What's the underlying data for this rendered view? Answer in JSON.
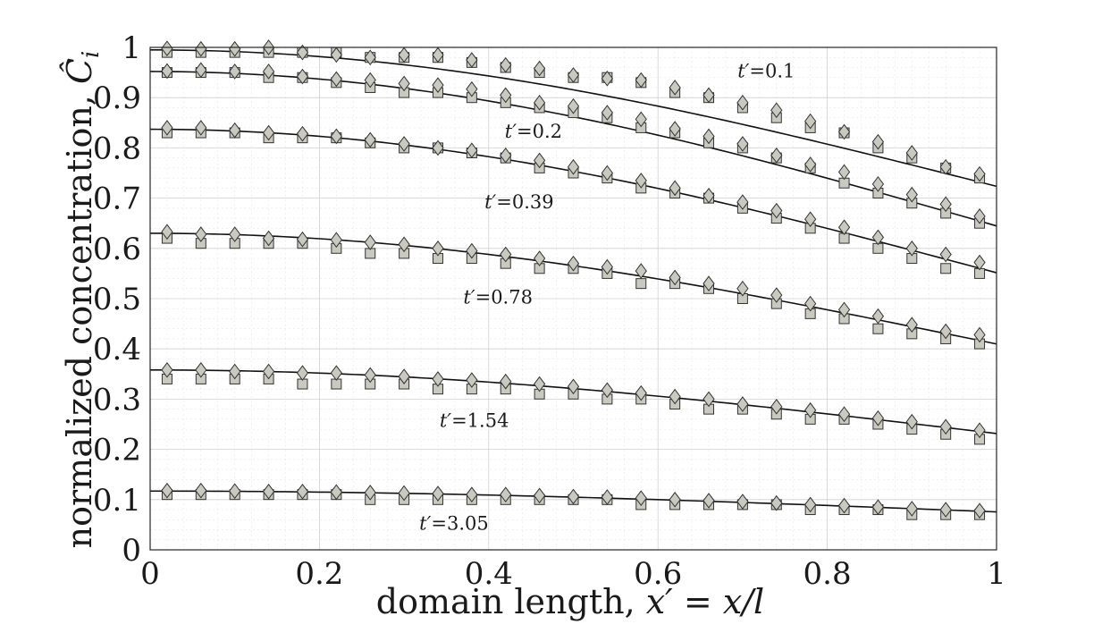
{
  "chart_data": {
    "type": "line",
    "xlabel": "domain length, x′ = x/l",
    "xlabel_parts": {
      "prefix": "domain length, ",
      "var": "x′",
      "eq": " = ",
      "num": "x",
      "den": "l"
    },
    "ylabel": "normalized concentration, Ĉi",
    "ylabel_parts": {
      "prefix": "normalized concentration, ",
      "var": "Ĉ",
      "sub": "i"
    },
    "xlim": [
      0,
      1
    ],
    "ylim": [
      0,
      1
    ],
    "xticks": [
      0,
      0.2,
      0.4,
      0.6,
      0.8,
      1
    ],
    "xtick_labels": [
      "0",
      "0.2",
      "0.4",
      "0.6",
      "0.8",
      "1"
    ],
    "yticks": [
      0,
      0.1,
      0.2,
      0.3,
      0.4,
      0.5,
      0.6,
      0.7,
      0.8,
      0.9,
      1
    ],
    "ytick_labels": [
      "0",
      "0.1",
      "0.2",
      "0.3",
      "0.4",
      "0.5",
      "0.6",
      "0.7",
      "0.8",
      "0.9",
      "1"
    ],
    "grid": true,
    "marker_x": [
      0.02,
      0.06,
      0.1,
      0.14,
      0.18,
      0.22,
      0.26,
      0.3,
      0.34,
      0.38,
      0.42,
      0.46,
      0.5,
      0.54,
      0.58,
      0.62,
      0.66,
      0.7,
      0.74,
      0.78,
      0.82,
      0.86,
      0.9,
      0.94,
      0.98
    ],
    "curves": [
      {
        "annotation": {
          "var": "t′",
          "value": "=0.1"
        },
        "annotation_pos": {
          "x": 0.694,
          "y": 0.94
        },
        "line_c0": 0.995,
        "line_c1": 0.7235,
        "squares": [
          0.99,
          0.99,
          0.99,
          0.99,
          0.99,
          0.99,
          0.98,
          0.98,
          0.98,
          0.97,
          0.96,
          0.95,
          0.94,
          0.94,
          0.93,
          0.91,
          0.9,
          0.88,
          0.86,
          0.84,
          0.83,
          0.8,
          0.78,
          0.76,
          0.74
        ],
        "diamonds": [
          0.998,
          0.997,
          0.997,
          1.0,
          0.99,
          0.985,
          0.98,
          0.985,
          0.985,
          0.975,
          0.965,
          0.958,
          0.945,
          0.938,
          0.935,
          0.92,
          0.905,
          0.89,
          0.875,
          0.853,
          0.832,
          0.812,
          0.79,
          0.762,
          0.748
        ]
      },
      {
        "annotation": {
          "var": "t′",
          "value": "=0.2"
        },
        "annotation_pos": {
          "x": 0.419,
          "y": 0.82
        },
        "line_c0": 0.952,
        "line_c1": 0.6447,
        "squares": [
          0.95,
          0.95,
          0.95,
          0.94,
          0.94,
          0.93,
          0.92,
          0.91,
          0.91,
          0.9,
          0.89,
          0.88,
          0.87,
          0.86,
          0.84,
          0.83,
          0.81,
          0.8,
          0.78,
          0.76,
          0.73,
          0.71,
          0.69,
          0.67,
          0.65
        ],
        "diamonds": [
          0.953,
          0.955,
          0.952,
          0.952,
          0.942,
          0.937,
          0.935,
          0.928,
          0.925,
          0.917,
          0.905,
          0.89,
          0.883,
          0.87,
          0.857,
          0.838,
          0.823,
          0.808,
          0.785,
          0.767,
          0.752,
          0.728,
          0.707,
          0.688,
          0.664
        ]
      },
      {
        "annotation": {
          "var": "t′",
          "value": "=0.39"
        },
        "annotation_pos": {
          "x": 0.395,
          "y": 0.68
        },
        "line_c0": 0.837,
        "line_c1": 0.5515,
        "squares": [
          0.83,
          0.83,
          0.83,
          0.82,
          0.82,
          0.82,
          0.81,
          0.8,
          0.8,
          0.79,
          0.78,
          0.76,
          0.75,
          0.74,
          0.72,
          0.71,
          0.7,
          0.68,
          0.66,
          0.64,
          0.62,
          0.6,
          0.58,
          0.56,
          0.55
        ],
        "diamonds": [
          0.84,
          0.84,
          0.835,
          0.83,
          0.828,
          0.823,
          0.816,
          0.808,
          0.8,
          0.795,
          0.785,
          0.775,
          0.762,
          0.75,
          0.735,
          0.72,
          0.705,
          0.692,
          0.675,
          0.658,
          0.642,
          0.622,
          0.6,
          0.588,
          0.572
        ]
      },
      {
        "annotation": {
          "var": "t′",
          "value": "=0.78"
        },
        "annotation_pos": {
          "x": 0.37,
          "y": 0.49
        },
        "line_c0": 0.63,
        "line_c1": 0.4097,
        "squares": [
          0.62,
          0.61,
          0.61,
          0.61,
          0.61,
          0.6,
          0.59,
          0.59,
          0.58,
          0.58,
          0.57,
          0.56,
          0.56,
          0.55,
          0.53,
          0.53,
          0.52,
          0.5,
          0.49,
          0.47,
          0.46,
          0.44,
          0.43,
          0.42,
          0.41
        ],
        "diamonds": [
          0.633,
          0.628,
          0.628,
          0.62,
          0.618,
          0.617,
          0.612,
          0.608,
          0.6,
          0.595,
          0.588,
          0.58,
          0.57,
          0.563,
          0.555,
          0.542,
          0.53,
          0.52,
          0.507,
          0.49,
          0.478,
          0.465,
          0.448,
          0.435,
          0.428
        ]
      },
      {
        "annotation": {
          "var": "t′",
          "value": "=1.54"
        },
        "annotation_pos": {
          "x": 0.342,
          "y": 0.245
        },
        "line_c0": 0.358,
        "line_c1": 0.2315,
        "squares": [
          0.34,
          0.34,
          0.34,
          0.34,
          0.33,
          0.33,
          0.33,
          0.33,
          0.32,
          0.32,
          0.32,
          0.31,
          0.31,
          0.3,
          0.3,
          0.29,
          0.28,
          0.28,
          0.27,
          0.26,
          0.26,
          0.25,
          0.24,
          0.23,
          0.22
        ],
        "diamonds": [
          0.358,
          0.358,
          0.355,
          0.355,
          0.352,
          0.352,
          0.348,
          0.345,
          0.34,
          0.338,
          0.335,
          0.33,
          0.325,
          0.318,
          0.312,
          0.305,
          0.3,
          0.29,
          0.285,
          0.278,
          0.27,
          0.262,
          0.255,
          0.245,
          0.238
        ]
      },
      {
        "annotation": {
          "var": "t′",
          "value": "=3.05"
        },
        "annotation_pos": {
          "x": 0.318,
          "y": 0.04
        },
        "line_c0": 0.117,
        "line_c1": 0.0755,
        "squares": [
          0.11,
          0.11,
          0.11,
          0.11,
          0.11,
          0.11,
          0.1,
          0.1,
          0.1,
          0.1,
          0.1,
          0.1,
          0.1,
          0.1,
          0.09,
          0.09,
          0.09,
          0.09,
          0.09,
          0.08,
          0.08,
          0.08,
          0.07,
          0.07,
          0.07
        ],
        "diamonds": [
          0.118,
          0.118,
          0.117,
          0.116,
          0.116,
          0.115,
          0.114,
          0.113,
          0.112,
          0.11,
          0.11,
          0.108,
          0.106,
          0.105,
          0.103,
          0.1,
          0.098,
          0.096,
          0.093,
          0.09,
          0.088,
          0.085,
          0.082,
          0.08,
          0.078
        ]
      }
    ]
  }
}
